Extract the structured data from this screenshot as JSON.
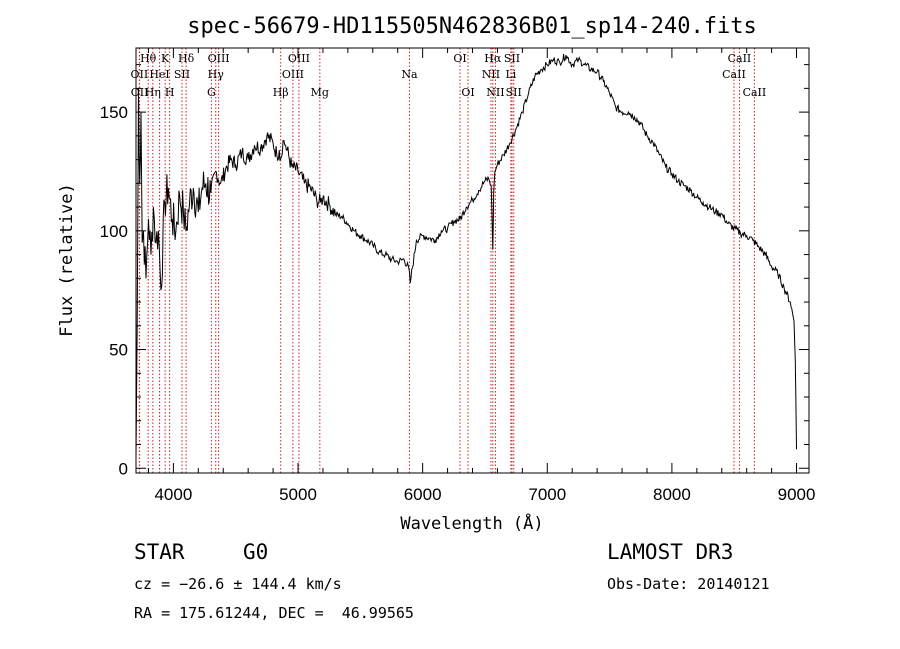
{
  "chart_data": {
    "type": "line",
    "title": "spec-56679-HD115505N462836B01_sp14-240.fits",
    "xlabel": "Wavelength (Å)",
    "ylabel": "Flux (relative)",
    "xlim": [
      3700,
      9100
    ],
    "ylim": [
      -2,
      177
    ],
    "xticks": [
      4000,
      5000,
      6000,
      7000,
      8000,
      9000
    ],
    "yticks": [
      0,
      50,
      100,
      150
    ],
    "series": [
      {
        "name": "flux",
        "x": [
          3700,
          3710,
          3720,
          3730,
          3740,
          3750,
          3760,
          3780,
          3800,
          3820,
          3840,
          3860,
          3880,
          3900,
          3930,
          3960,
          3990,
          4020,
          4050,
          4080,
          4100,
          4130,
          4160,
          4200,
          4230,
          4260,
          4300,
          4340,
          4380,
          4420,
          4460,
          4500,
          4550,
          4600,
          4650,
          4700,
          4750,
          4800,
          4830,
          4850,
          4860,
          4880,
          4900,
          4950,
          5000,
          5050,
          5100,
          5150,
          5180,
          5200,
          5250,
          5300,
          5350,
          5400,
          5450,
          5500,
          5550,
          5600,
          5650,
          5700,
          5750,
          5800,
          5850,
          5890,
          5900,
          5950,
          6000,
          6050,
          6100,
          6150,
          6200,
          6250,
          6300,
          6350,
          6400,
          6450,
          6500,
          6530,
          6550,
          6563,
          6570,
          6580,
          6600,
          6650,
          6700,
          6750,
          6800,
          6850,
          6900,
          6950,
          7000,
          7050,
          7100,
          7150,
          7200,
          7250,
          7300,
          7350,
          7400,
          7450,
          7500,
          7550,
          7600,
          7650,
          7700,
          7750,
          7800,
          7850,
          7900,
          7950,
          8000,
          8050,
          8100,
          8150,
          8200,
          8250,
          8300,
          8350,
          8400,
          8450,
          8500,
          8550,
          8600,
          8650,
          8700,
          8750,
          8800,
          8850,
          8900,
          8950,
          8980,
          8990,
          8995,
          9000
        ],
        "values": [
          5,
          60,
          160,
          120,
          150,
          95,
          100,
          80,
          105,
          90,
          110,
          95,
          100,
          75,
          112,
          118,
          105,
          100,
          115,
          108,
          100,
          112,
          118,
          108,
          118,
          120,
          116,
          125,
          120,
          126,
          130,
          128,
          133,
          130,
          136,
          135,
          140,
          137,
          132,
          134,
          130,
          138,
          136,
          127,
          125,
          120,
          118,
          113,
          112,
          114,
          111,
          107,
          106,
          103,
          100,
          98,
          96,
          94,
          91,
          90,
          88,
          87,
          88,
          84,
          78,
          96,
          98,
          97,
          96,
          100,
          101,
          104,
          105,
          110,
          113,
          117,
          121,
          122,
          119,
          92,
          116,
          125,
          128,
          132,
          137,
          143,
          150,
          158,
          165,
          168,
          170,
          172,
          171,
          174,
          170,
          172,
          170,
          168,
          167,
          163,
          158,
          152,
          150,
          150,
          148,
          145,
          140,
          137,
          132,
          127,
          124,
          121,
          119,
          117,
          114,
          112,
          110,
          108,
          107,
          103,
          101,
          99,
          98,
          96,
          93,
          90,
          85,
          82,
          76,
          70,
          62,
          45,
          28,
          8
        ]
      }
    ],
    "spectral_lines": [
      {
        "label": "Hθ",
        "wavelength": 3798,
        "row": 1
      },
      {
        "label": "OII",
        "wavelength": 3727,
        "row": 2
      },
      {
        "label": "OII",
        "wavelength": 3729,
        "row": 3
      },
      {
        "label": "K",
        "wavelength": 3934,
        "row": 1
      },
      {
        "label": "HeI",
        "wavelength": 3889,
        "row": 2
      },
      {
        "label": "Hη",
        "wavelength": 3835,
        "row": 3
      },
      {
        "label": "SII",
        "wavelength": 4069,
        "row": 2
      },
      {
        "label": "H",
        "wavelength": 3970,
        "row": 3
      },
      {
        "label": "Hδ",
        "wavelength": 4102,
        "row": 1
      },
      {
        "label": "OIII",
        "wavelength": 4363,
        "row": 1
      },
      {
        "label": "Hγ",
        "wavelength": 4340,
        "row": 2
      },
      {
        "label": "G",
        "wavelength": 4305,
        "row": 3
      },
      {
        "label": "OIII",
        "wavelength": 5007,
        "row": 1
      },
      {
        "label": "OIII",
        "wavelength": 4959,
        "row": 2
      },
      {
        "label": "Hβ",
        "wavelength": 4861,
        "row": 3
      },
      {
        "label": "Mg",
        "wavelength": 5175,
        "row": 3
      },
      {
        "label": "Na",
        "wavelength": 5894,
        "row": 2
      },
      {
        "label": "OI",
        "wavelength": 6300,
        "row": 1
      },
      {
        "label": "OI",
        "wavelength": 6364,
        "row": 3
      },
      {
        "label": "Hα",
        "wavelength": 6563,
        "row": 1
      },
      {
        "label": "NII",
        "wavelength": 6548,
        "row": 2
      },
      {
        "label": "NII",
        "wavelength": 6584,
        "row": 3
      },
      {
        "label": "SII",
        "wavelength": 6717,
        "row": 1
      },
      {
        "label": "Li",
        "wavelength": 6708,
        "row": 2
      },
      {
        "label": "SII",
        "wavelength": 6731,
        "row": 3
      },
      {
        "label": "CaII",
        "wavelength": 8542,
        "row": 1
      },
      {
        "label": "CaII",
        "wavelength": 8498,
        "row": 2
      },
      {
        "label": "CaII",
        "wavelength": 8662,
        "row": 3
      }
    ]
  },
  "info": {
    "object_class": "STAR",
    "subclass": "G0",
    "survey": "LAMOST DR3",
    "cz": "cz = −26.6 ± 144.4 km/s",
    "obs_date": "Obs-Date: 20140121",
    "coords": "RA = 175.61244, DEC =  46.99565"
  },
  "colors": {
    "axis": "#000000",
    "line": "#000000",
    "marker": "#cc2222"
  }
}
